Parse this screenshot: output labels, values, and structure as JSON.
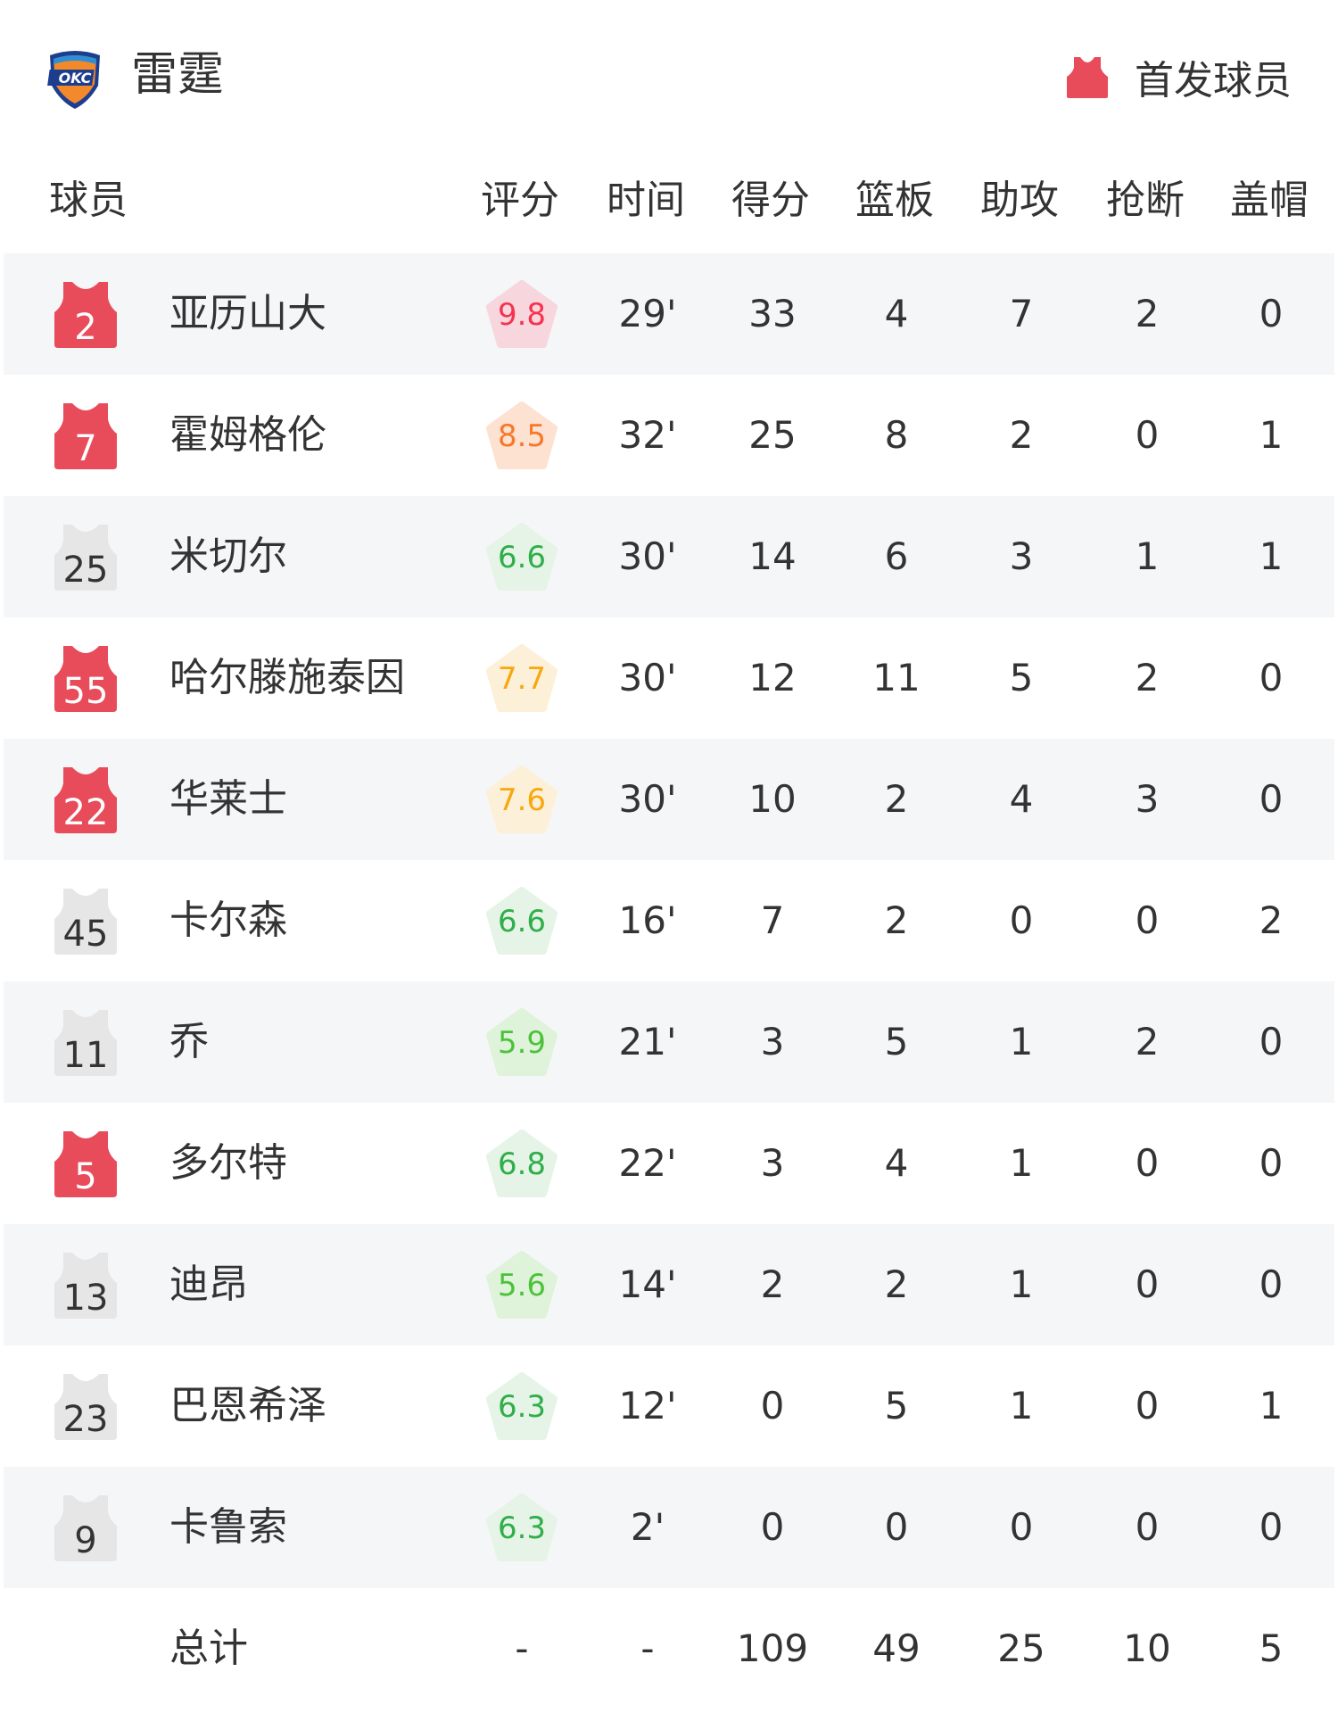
{
  "team": {
    "name": "雷霆",
    "logo_text": "OKC"
  },
  "legend": {
    "label": "首发球员",
    "starter_color": "#e84c5a"
  },
  "columns": {
    "player": "球员",
    "rating": "评分",
    "time": "时间",
    "points": "得分",
    "rebounds": "篮板",
    "assists": "助攻",
    "steals": "抢断",
    "blocks": "盖帽"
  },
  "colors": {
    "starter_jersey": "#e84c5a",
    "bench_jersey": "#e6e6e6",
    "row_alt": "#f5f6f8"
  },
  "rating_styles": {
    "red": {
      "text": "#f5334f",
      "bg": "#f8d6dd"
    },
    "orange": {
      "text": "#f7782a",
      "bg": "#fde2d2"
    },
    "yellow": {
      "text": "#f8a70f",
      "bg": "#fdf0d8"
    },
    "green": {
      "text": "#2fae4a",
      "bg": "#e5f4e6"
    },
    "lightgreen": {
      "text": "#4cc23a",
      "bg": "#def3da"
    }
  },
  "players": [
    {
      "number": "2",
      "starter": true,
      "name": "亚历山大",
      "rating": "9.8",
      "rating_style": "red",
      "time": "29'",
      "points": "33",
      "rebounds": "4",
      "assists": "7",
      "steals": "2",
      "blocks": "0"
    },
    {
      "number": "7",
      "starter": true,
      "name": "霍姆格伦",
      "rating": "8.5",
      "rating_style": "orange",
      "time": "32'",
      "points": "25",
      "rebounds": "8",
      "assists": "2",
      "steals": "0",
      "blocks": "1"
    },
    {
      "number": "25",
      "starter": false,
      "name": "米切尔",
      "rating": "6.6",
      "rating_style": "green",
      "time": "30'",
      "points": "14",
      "rebounds": "6",
      "assists": "3",
      "steals": "1",
      "blocks": "1"
    },
    {
      "number": "55",
      "starter": true,
      "name": "哈尔滕施泰因",
      "rating": "7.7",
      "rating_style": "yellow",
      "time": "30'",
      "points": "12",
      "rebounds": "11",
      "assists": "5",
      "steals": "2",
      "blocks": "0"
    },
    {
      "number": "22",
      "starter": true,
      "name": "华莱士",
      "rating": "7.6",
      "rating_style": "yellow",
      "time": "30'",
      "points": "10",
      "rebounds": "2",
      "assists": "4",
      "steals": "3",
      "blocks": "0"
    },
    {
      "number": "45",
      "starter": false,
      "name": "卡尔森",
      "rating": "6.6",
      "rating_style": "green",
      "time": "16'",
      "points": "7",
      "rebounds": "2",
      "assists": "0",
      "steals": "0",
      "blocks": "2"
    },
    {
      "number": "11",
      "starter": false,
      "name": "乔",
      "rating": "5.9",
      "rating_style": "lightgreen",
      "time": "21'",
      "points": "3",
      "rebounds": "5",
      "assists": "1",
      "steals": "2",
      "blocks": "0"
    },
    {
      "number": "5",
      "starter": true,
      "name": "多尔特",
      "rating": "6.8",
      "rating_style": "green",
      "time": "22'",
      "points": "3",
      "rebounds": "4",
      "assists": "1",
      "steals": "0",
      "blocks": "0"
    },
    {
      "number": "13",
      "starter": false,
      "name": "迪昂",
      "rating": "5.6",
      "rating_style": "lightgreen",
      "time": "14'",
      "points": "2",
      "rebounds": "2",
      "assists": "1",
      "steals": "0",
      "blocks": "0"
    },
    {
      "number": "23",
      "starter": false,
      "name": "巴恩希泽",
      "rating": "6.3",
      "rating_style": "green",
      "time": "12'",
      "points": "0",
      "rebounds": "5",
      "assists": "1",
      "steals": "0",
      "blocks": "1"
    },
    {
      "number": "9",
      "starter": false,
      "name": "卡鲁索",
      "rating": "6.3",
      "rating_style": "green",
      "time": "2'",
      "points": "0",
      "rebounds": "0",
      "assists": "0",
      "steals": "0",
      "blocks": "0"
    }
  ],
  "totals": {
    "label": "总计",
    "rating": "-",
    "time": "-",
    "points": "109",
    "rebounds": "49",
    "assists": "25",
    "steals": "10",
    "blocks": "5"
  }
}
